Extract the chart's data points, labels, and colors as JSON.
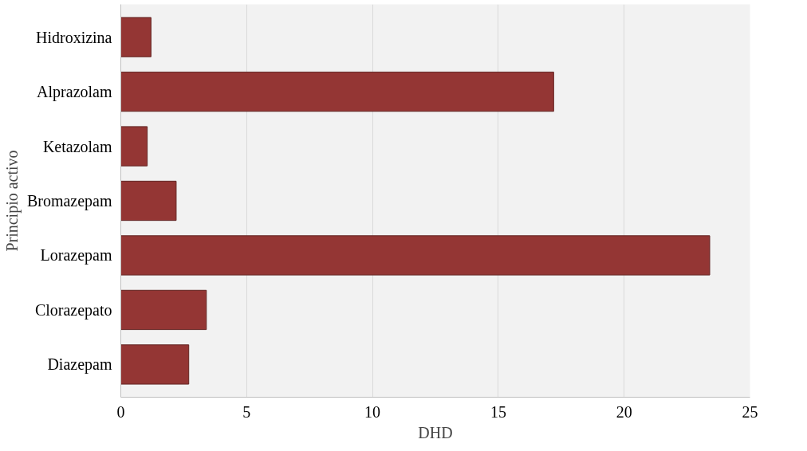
{
  "chart_data": {
    "type": "bar",
    "orientation": "horizontal",
    "xlabel": "DHD",
    "ylabel": "Principio activo",
    "categories": [
      "Hidroxizina",
      "Alprazolam",
      "Ketazolam",
      "Bromazepam",
      "Lorazepam",
      "Clorazepato",
      "Diazepam"
    ],
    "values": [
      1.2,
      17.2,
      1.05,
      2.2,
      23.4,
      3.4,
      2.7
    ],
    "color": "#943634",
    "xlim": [
      0,
      25
    ],
    "xticks": [
      0,
      5,
      10,
      15,
      20,
      25
    ],
    "grid": "x"
  }
}
